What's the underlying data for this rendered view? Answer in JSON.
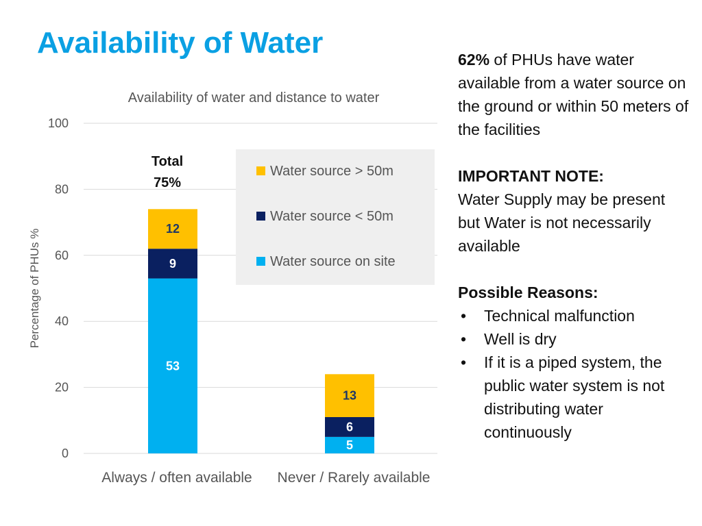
{
  "slide": {
    "title": "Availability of Water"
  },
  "chart_data": {
    "type": "bar",
    "stacked": true,
    "title": "Availability of water and distance to water",
    "ylabel": "Percentage of PHUs %",
    "xlabel": "",
    "ylim": [
      0,
      100
    ],
    "yticks": [
      0,
      20,
      40,
      60,
      80,
      100
    ],
    "grid": true,
    "legend_position": "top-right",
    "categories": [
      "Always / often available",
      "Never / Rarely available"
    ],
    "series": [
      {
        "name": "Water source on site",
        "values": [
          53,
          5
        ],
        "color": "#00b0f0",
        "label_color": "#ffffff"
      },
      {
        "name": "Water source < 50m",
        "values": [
          9,
          6
        ],
        "color": "#0a2060",
        "label_color": "#ffffff"
      },
      {
        "name": "Water source > 50m",
        "values": [
          12,
          13
        ],
        "color": "#ffc000",
        "label_color": "#1f3864"
      }
    ],
    "legend_order": [
      "Water source > 50m",
      "Water source < 50m",
      "Water source on site"
    ],
    "annotations": [
      {
        "category_index": 0,
        "lines": [
          "Total",
          "75%"
        ]
      }
    ]
  },
  "side": {
    "p1_bold": "62%",
    "p1_rest": " of PHUs have water available from a water source on the ground or within 50 meters of the facilities",
    "note_heading": "IMPORTANT NOTE:",
    "note_body": "Water Supply may be present but Water is not necessarily available",
    "reasons_heading": "Possible Reasons:",
    "bullet_symbol": "•",
    "reasons": [
      "Technical malfunction",
      "Well is dry",
      "If it is a piped system, the public water system is not distributing water continuously"
    ]
  }
}
